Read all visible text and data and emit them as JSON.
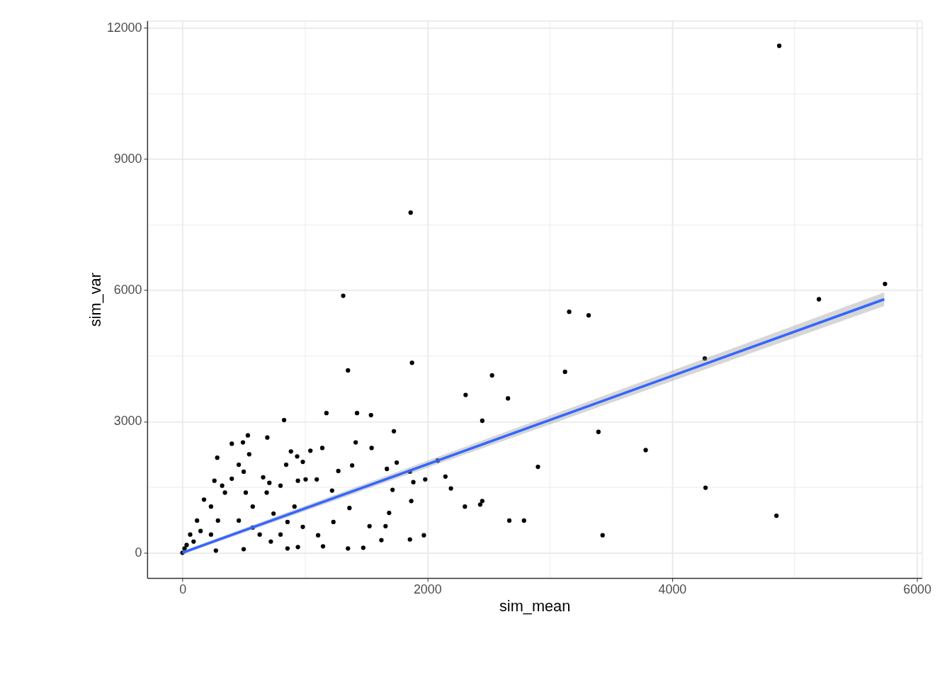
{
  "chart_data": {
    "type": "scatter",
    "xlabel": "sim_mean",
    "ylabel": "sim_var",
    "xlim": [
      -288,
      6040
    ],
    "ylim": [
      -580,
      12160
    ],
    "xticks": [
      0,
      {
        "value": 1000,
        "label": null
      },
      2000,
      {
        "value": 3000,
        "label": null
      },
      4000,
      {
        "value": 5000,
        "label": null
      },
      6000
    ],
    "yticks": [
      0,
      {
        "value": 1500,
        "label": null
      },
      3000,
      {
        "value": 4500,
        "label": null
      },
      6000,
      {
        "value": 7500,
        "label": null
      },
      9000,
      {
        "value": 10500,
        "label": null
      },
      12000
    ],
    "grid": true,
    "series": [
      {
        "color": "#000000",
        "marker": "circle",
        "x": [
          4875,
          1864,
          5739,
          5199,
          1313,
          3159,
          3318,
          4267,
          1352,
          1875,
          3125,
          2529,
          2313,
          2659,
          1176,
          2449,
          830,
          1426,
          1540,
          534,
          1727,
          3398,
          3784,
          693,
          1415,
          2904,
          2085,
          1750,
          4273,
          4852,
          3432,
          2790,
          2670,
          2449,
          2432,
          2307,
          2193,
          2148,
          1972,
          1858,
          1477,
          1625,
          1869,
          1886,
          1983,
          1858,
          1670,
          1386,
          1545,
          1142,
          1045,
          886,
          937,
          983,
          1273,
          1006,
          1097,
          1222,
          1716,
          1688,
          1659,
          1528,
          1364,
          1233,
          1108,
          1148,
          1352,
          943,
          858,
          983,
          722,
          500,
          273,
          119,
          233,
          347,
          403,
          460,
          500,
          324,
          176,
          63,
          17,
          517,
          688,
          801,
          574,
          460,
          233,
          631,
          801,
          915,
          744,
          261,
          284,
          403,
          494,
          545,
          659,
          710,
          847,
          943,
          34,
          91,
          148,
          290,
          574,
          858,
          0
        ],
        "values": [
          11587,
          7773,
          6145,
          5793,
          5873,
          5506,
          5426,
          4437,
          4166,
          4341,
          4134,
          4054,
          3607,
          3527,
          3192,
          3016,
          3032,
          3192,
          3144,
          2681,
          2777,
          2761,
          2346,
          2633,
          2522,
          1963,
          2107,
          2059,
          1484,
          846,
          399,
          734,
          734,
          1181,
          1101,
          1053,
          1468,
          1740,
          399,
          303,
          112,
          287,
          1181,
          1612,
          1676,
          1851,
          1915,
          1995,
          2394,
          2394,
          2330,
          2314,
          2202,
          2075,
          1867,
          1676,
          1676,
          1420,
          1436,
          910,
          606,
          606,
          1021,
          702,
          399,
          144,
          96,
          128,
          702,
          591,
          255,
          80,
          48,
          734,
          1053,
          1373,
          1692,
          2011,
          1851,
          1532,
          1213,
          415,
          96,
          1373,
          1373,
          1532,
          1053,
          734,
          415,
          415,
          415,
          1053,
          894,
          1644,
          2171,
          2490,
          2522,
          2250,
          1724,
          1596,
          2011,
          1644,
          176,
          255,
          495,
          734,
          575,
          96,
          0
        ]
      },
      {
        "type": "line",
        "color": "#3366ff",
        "x": [
          0,
          5733
        ],
        "values": [
          0,
          5793
        ],
        "lower": [
          -40,
          5640
        ],
        "upper": [
          40,
          5950
        ]
      }
    ]
  }
}
